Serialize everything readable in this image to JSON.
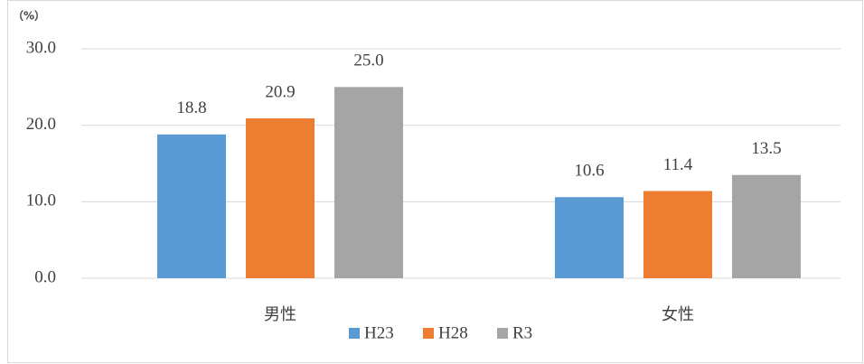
{
  "chart_data": {
    "type": "bar",
    "unit_label": "（%）",
    "categories": [
      "男性",
      "女性"
    ],
    "series": [
      {
        "name": "H23",
        "color": "#5b9bd5",
        "values": [
          18.8,
          10.6
        ],
        "value_labels": [
          "18.8",
          "10.6"
        ]
      },
      {
        "name": "H28",
        "color": "#ed7d31",
        "values": [
          20.9,
          11.4
        ],
        "value_labels": [
          "20.9",
          "11.4"
        ]
      },
      {
        "name": "R3",
        "color": "#a5a5a5",
        "values": [
          25,
          13.5
        ],
        "value_labels": [
          "25.0",
          "13.5"
        ]
      }
    ],
    "ylim": [
      0,
      30
    ],
    "yticks": [
      {
        "value": 0,
        "label": "0.0"
      },
      {
        "value": 10,
        "label": "10.0"
      },
      {
        "value": 20,
        "label": "20.0"
      },
      {
        "value": 30,
        "label": "30.0"
      }
    ],
    "grid": true,
    "legend": "bottom"
  }
}
